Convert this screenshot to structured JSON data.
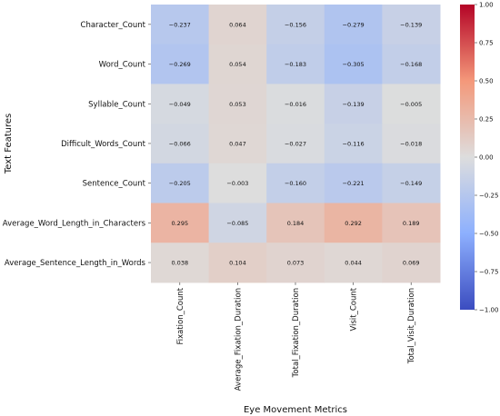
{
  "chart_data": {
    "type": "heatmap",
    "xlabel": "Eye Movement Metrics",
    "ylabel": "Text Features",
    "rows": [
      "Character_Count",
      "Word_Count",
      "Syllable_Count",
      "Difficult_Words_Count",
      "Sentence_Count",
      "Average_Word_Length_in_Characters",
      "Average_Sentence_Length_in_Words"
    ],
    "columns": [
      "Fixation_Count",
      "Average_Fixation_Duration",
      "Total_Fixation_Duration",
      "Visit_Count",
      "Total_Visit_Duration"
    ],
    "values": [
      [
        -0.237,
        0.064,
        -0.156,
        -0.279,
        -0.139
      ],
      [
        -0.269,
        0.054,
        -0.183,
        -0.305,
        -0.168
      ],
      [
        -0.049,
        0.053,
        -0.016,
        -0.139,
        -0.005
      ],
      [
        -0.066,
        0.047,
        -0.027,
        -0.116,
        -0.018
      ],
      [
        -0.205,
        -0.003,
        -0.16,
        -0.221,
        -0.149
      ],
      [
        0.295,
        -0.085,
        0.184,
        0.292,
        0.189
      ],
      [
        0.038,
        0.104,
        0.073,
        0.044,
        0.069
      ]
    ],
    "value_labels": [
      [
        "−0.237",
        "0.064",
        "−0.156",
        "−0.279",
        "−0.139"
      ],
      [
        "−0.269",
        "0.054",
        "−0.183",
        "−0.305",
        "−0.168"
      ],
      [
        "−0.049",
        "0.053",
        "−0.016",
        "−0.139",
        "−0.005"
      ],
      [
        "−0.066",
        "0.047",
        "−0.027",
        "−0.116",
        "−0.018"
      ],
      [
        "−0.205",
        "−0.003",
        "−0.160",
        "−0.221",
        "−0.149"
      ],
      [
        "0.295",
        "−0.085",
        "0.184",
        "0.292",
        "0.189"
      ],
      [
        "0.038",
        "0.104",
        "0.073",
        "0.044",
        "0.069"
      ]
    ],
    "colorbar": {
      "range": [
        -1.0,
        1.0
      ],
      "ticks": [
        1.0,
        0.75,
        0.5,
        0.25,
        0.0,
        -0.25,
        -0.5,
        -0.75,
        -1.0
      ],
      "tick_labels": [
        "1.00",
        "0.75",
        "0.50",
        "0.25",
        "0.00",
        "−0.25",
        "−0.50",
        "−0.75",
        "−1.00"
      ],
      "colormap": "coolwarm",
      "colors": {
        "low": "#3b4cc0",
        "mid": "#dddddd",
        "high": "#b40426"
      }
    }
  }
}
